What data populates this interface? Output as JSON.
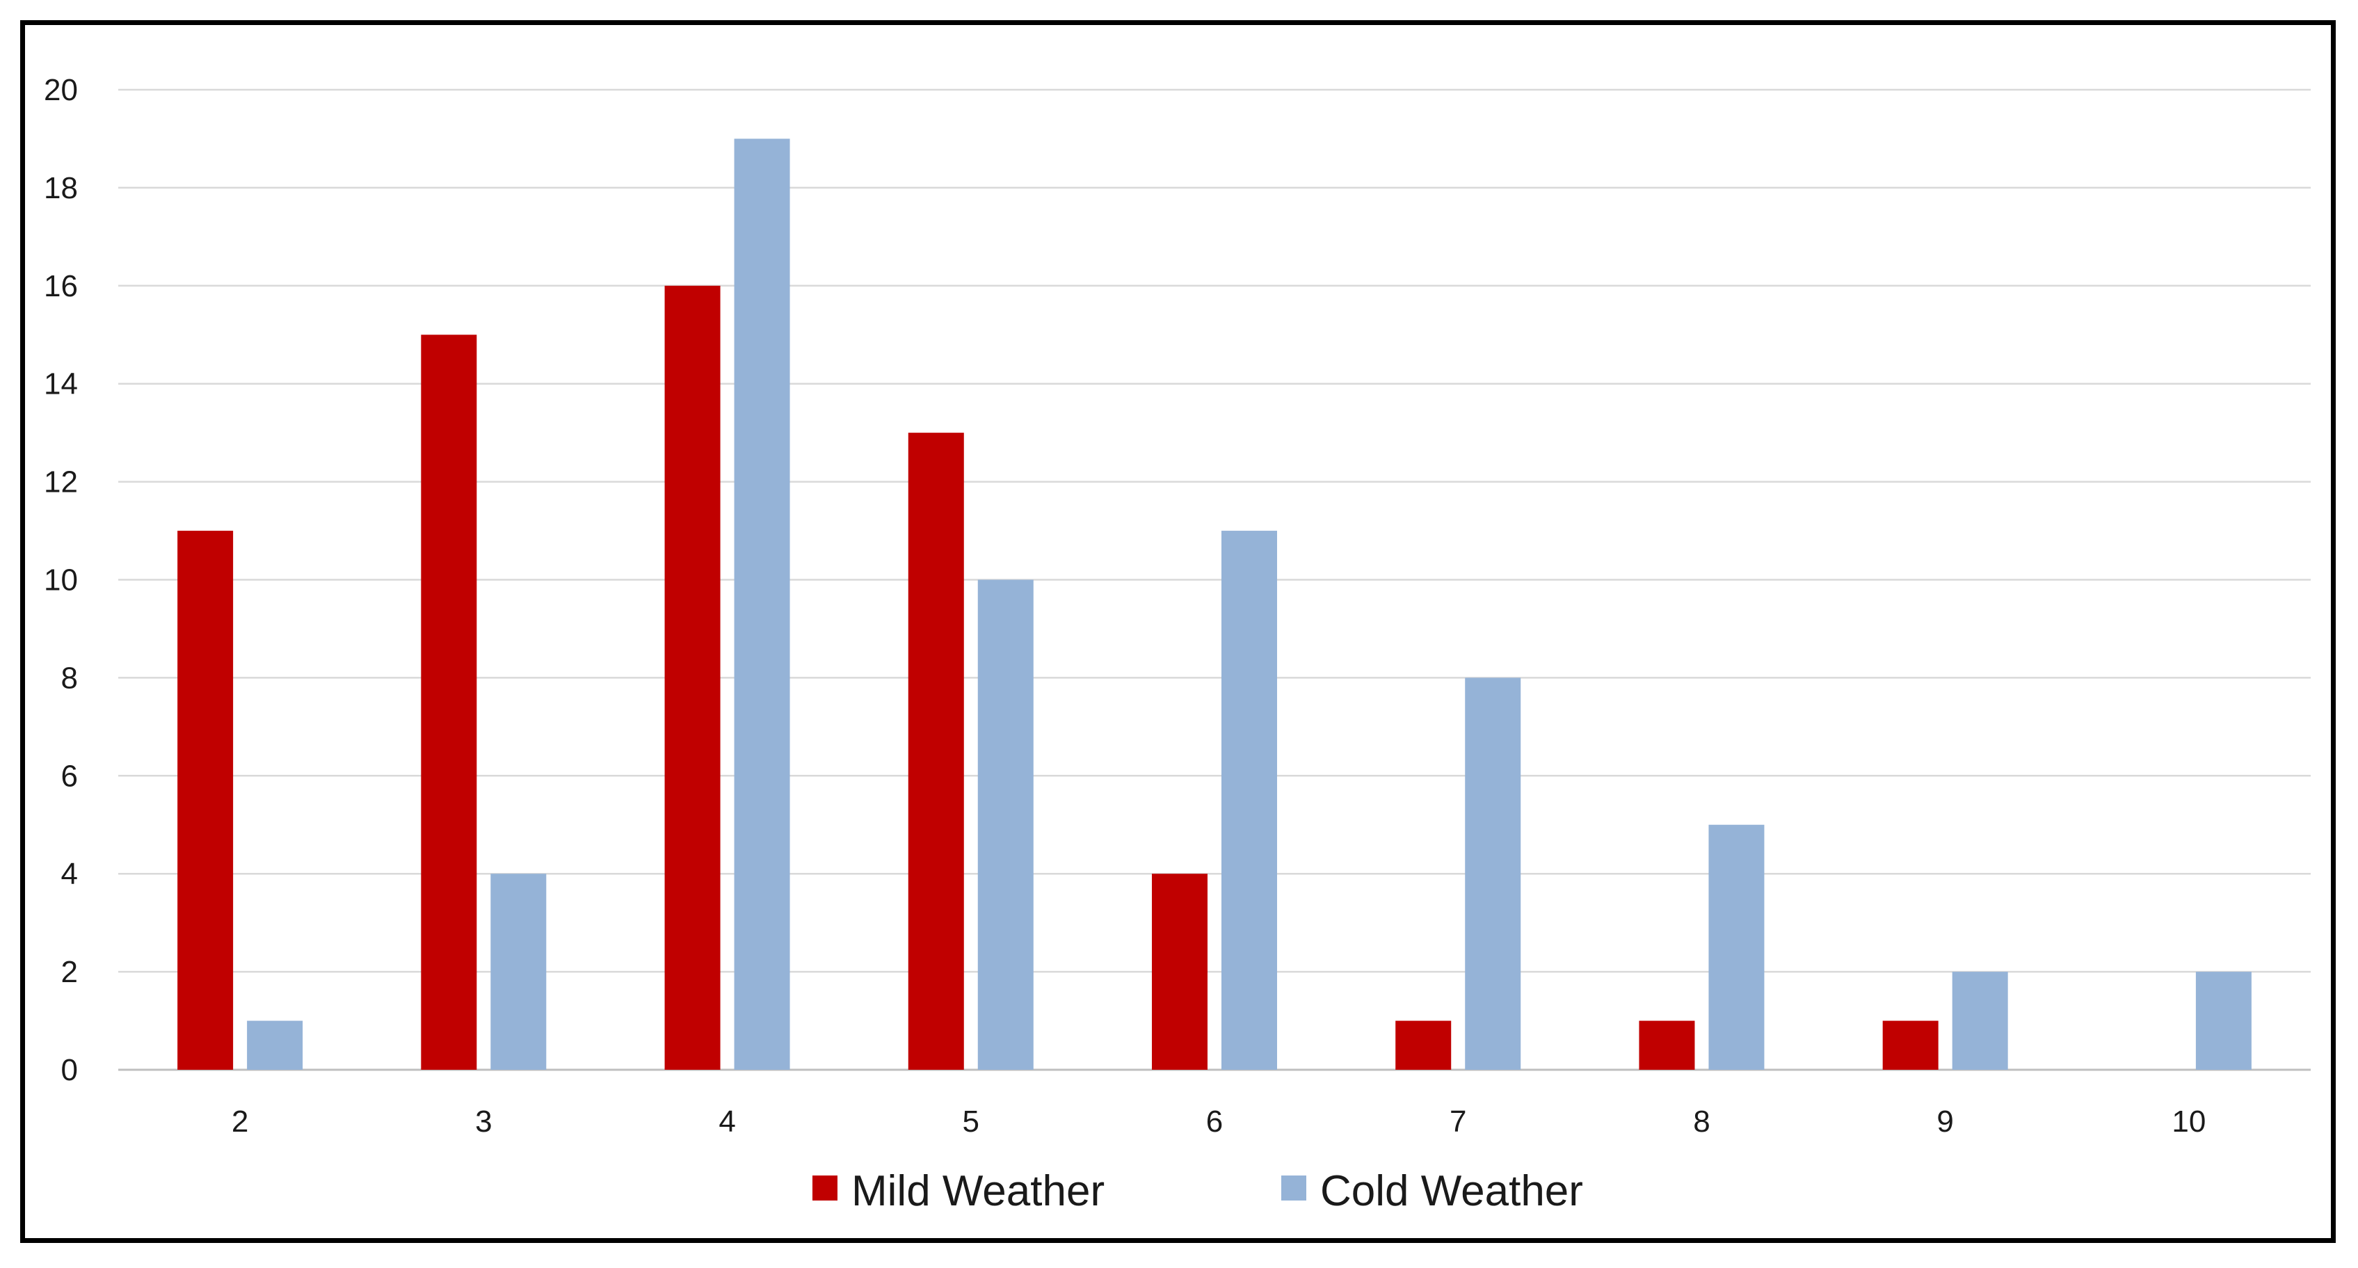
{
  "chart_data": {
    "type": "bar",
    "title": "",
    "xlabel": "",
    "ylabel": "",
    "categories": [
      "2",
      "3",
      "4",
      "5",
      "6",
      "7",
      "8",
      "9",
      "10"
    ],
    "series": [
      {
        "name": "Mild Weather",
        "color": "#C00000",
        "values": [
          11,
          15,
          16,
          13,
          4,
          1,
          1,
          1,
          0
        ]
      },
      {
        "name": "Cold Weather",
        "color": "#95B3D7",
        "values": [
          1,
          4,
          19,
          10,
          11,
          8,
          5,
          2,
          2
        ]
      }
    ],
    "ylim": [
      0,
      20
    ],
    "yticks": [
      0,
      2,
      4,
      6,
      8,
      10,
      12,
      14,
      16,
      18,
      20
    ],
    "grid": true,
    "gridColor": "#D9D9D9",
    "legend": "bottom-center"
  }
}
